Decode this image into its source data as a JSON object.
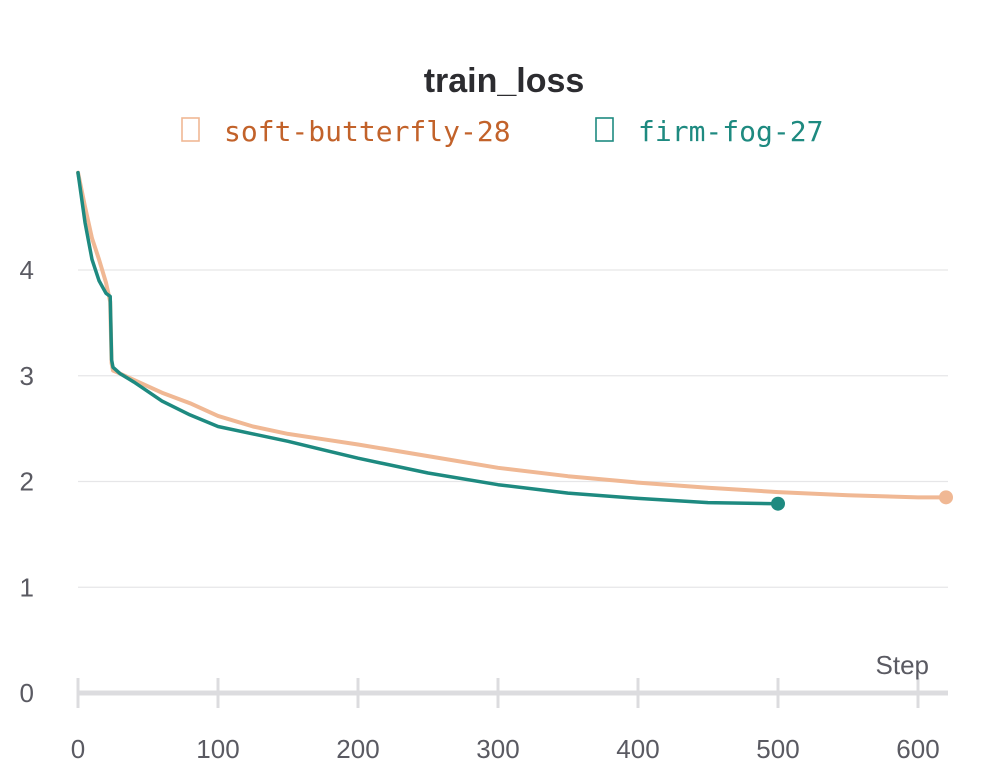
{
  "chart_data": {
    "type": "line",
    "title": "train_loss",
    "xlabel": "Step",
    "ylabel": "",
    "xlim": [
      0,
      620
    ],
    "ylim": [
      0,
      5
    ],
    "x_ticks": [
      0,
      100,
      200,
      300,
      400,
      500,
      600
    ],
    "y_ticks": [
      0,
      1,
      2,
      3,
      4
    ],
    "grid": true,
    "legend_position": "top-center",
    "series": [
      {
        "name": "soft-butterfly-28",
        "color": "#f0b894",
        "legend_color": "#c2622a",
        "x": [
          0,
          5,
          10,
          15,
          20,
          23,
          24,
          25,
          30,
          40,
          60,
          80,
          100,
          125,
          150,
          175,
          200,
          250,
          300,
          350,
          400,
          450,
          500,
          550,
          600,
          620
        ],
        "y": [
          4.92,
          4.6,
          4.3,
          4.1,
          3.88,
          3.7,
          3.12,
          3.05,
          3.02,
          2.96,
          2.84,
          2.74,
          2.62,
          2.52,
          2.45,
          2.4,
          2.35,
          2.24,
          2.13,
          2.05,
          1.99,
          1.94,
          1.9,
          1.87,
          1.85,
          1.85
        ]
      },
      {
        "name": "firm-fog-27",
        "color": "#1e8a80",
        "legend_color": "#1e8a80",
        "x": [
          0,
          5,
          10,
          15,
          20,
          23,
          24,
          25,
          30,
          40,
          50,
          60,
          80,
          100,
          125,
          150,
          175,
          200,
          250,
          300,
          350,
          400,
          450,
          500
        ],
        "y": [
          4.92,
          4.45,
          4.1,
          3.9,
          3.78,
          3.75,
          3.15,
          3.08,
          3.02,
          2.94,
          2.85,
          2.76,
          2.63,
          2.52,
          2.45,
          2.38,
          2.3,
          2.22,
          2.08,
          1.97,
          1.89,
          1.84,
          1.8,
          1.79
        ]
      }
    ]
  }
}
